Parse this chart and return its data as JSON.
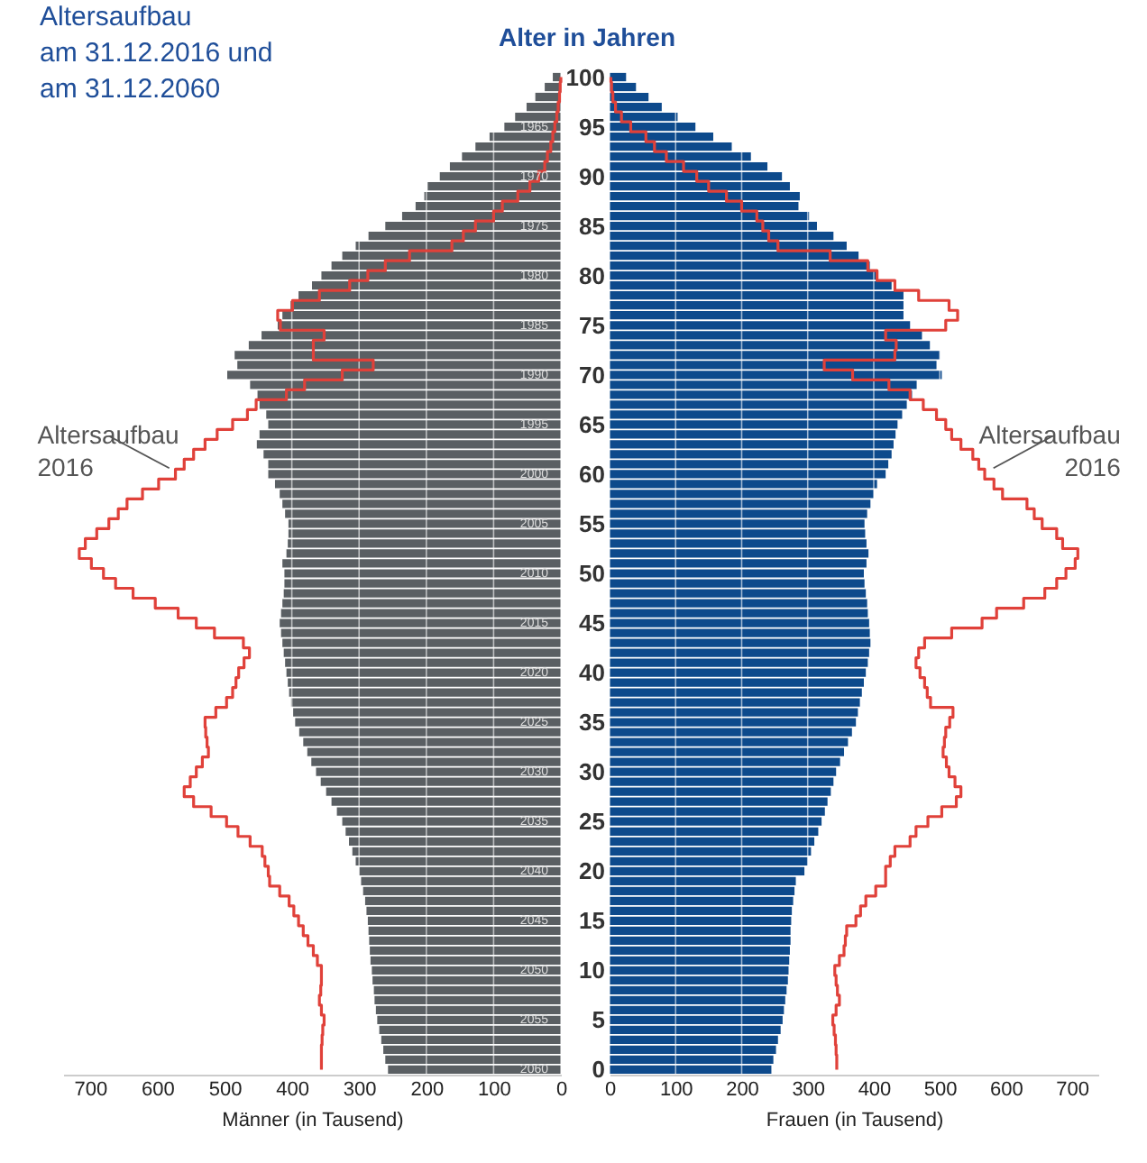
{
  "chart_data": [
    {
      "type": "bar",
      "orientation": "horizontal",
      "title": "Altersaufbau\nam 31.12.2016 und\nam 31.12.2060",
      "xlabel": "Männer (in Tausend)",
      "xlim": [
        740,
        0
      ],
      "xticks": [
        0,
        100,
        200,
        300,
        400,
        500,
        600,
        700
      ],
      "grid": "x",
      "tick_labels": "x",
      "categories": [
        "100",
        null,
        null,
        null,
        null,
        "95",
        null,
        null,
        null,
        null,
        "90",
        null,
        null,
        null,
        null,
        "85",
        null,
        null,
        null,
        null,
        "80",
        null,
        null,
        null,
        null,
        "75",
        null,
        null,
        null,
        null,
        "70",
        null,
        null,
        null,
        null,
        "65",
        null,
        null,
        null,
        null,
        "60",
        null,
        null,
        null,
        null,
        "55",
        null,
        null,
        null,
        null,
        "50",
        null,
        null,
        null,
        null,
        "45",
        null,
        null,
        null,
        null,
        "40",
        null,
        null,
        null,
        null,
        "35",
        null,
        null,
        null,
        null,
        "30",
        null,
        null,
        null,
        null,
        "25",
        null,
        null,
        null,
        null,
        "20",
        null,
        null,
        null,
        null,
        "15",
        null,
        null,
        null,
        null,
        "10",
        null,
        null,
        null,
        null,
        "5",
        null,
        null,
        null,
        null,
        "0"
      ],
      "series": [
        {
          "type": "bar",
          "color": "#5a5f63",
          "values": [
            12,
            24,
            38,
            51,
            68,
            84,
            106,
            127,
            147,
            165,
            180,
            198,
            203,
            216,
            236,
            261,
            286,
            305,
            325,
            341,
            356,
            370,
            390,
            402,
            414,
            421,
            445,
            464,
            485,
            481,
            496,
            462,
            451,
            448,
            438,
            435,
            448,
            452,
            442,
            435,
            435,
            425,
            418,
            414,
            410,
            405,
            405,
            406,
            408,
            414,
            411,
            411,
            412,
            414,
            416,
            418,
            416,
            414,
            412,
            410,
            408,
            406,
            404,
            401,
            398,
            395,
            389,
            383,
            377,
            371,
            364,
            357,
            349,
            341,
            333,
            325,
            320,
            315,
            310,
            305,
            300,
            297,
            294,
            291,
            289,
            287,
            286,
            285,
            284,
            283,
            281,
            280,
            278,
            277,
            275,
            273,
            270,
            267,
            264,
            261,
            257
          ]
        },
        {
          "type": "step",
          "name": "Altersaufbau 2016",
          "color": "#e0413a",
          "values": [
            0,
            1,
            2,
            4,
            6,
            9,
            12,
            15,
            20,
            24,
            33,
            46,
            64,
            87,
            100,
            127,
            145,
            162,
            225,
            261,
            287,
            314,
            359,
            399,
            421,
            417,
            352,
            368,
            368,
            279,
            325,
            381,
            408,
            453,
            466,
            488,
            511,
            529,
            546,
            560,
            573,
            598,
            622,
            645,
            658,
            672,
            690,
            707,
            716,
            698,
            680,
            662,
            636,
            603,
            569,
            542,
            515,
            472,
            463,
            471,
            479,
            483,
            488,
            497,
            513,
            529,
            528,
            526,
            524,
            533,
            542,
            551,
            560,
            546,
            520,
            497,
            480,
            462,
            444,
            440,
            435,
            433,
            418,
            404,
            397,
            390,
            383,
            376,
            368,
            362,
            356,
            356,
            357,
            359,
            356,
            352,
            354,
            355,
            356,
            356,
            356
          ]
        }
      ],
      "annotations": [
        {
          "text": "1965",
          "y": "95"
        },
        {
          "text": "1970",
          "y": "90"
        },
        {
          "text": "1975",
          "y": "85"
        },
        {
          "text": "1980",
          "y": "80"
        },
        {
          "text": "1985",
          "y": "75"
        },
        {
          "text": "1990",
          "y": "70"
        },
        {
          "text": "1995",
          "y": "65"
        },
        {
          "text": "2000",
          "y": "60"
        },
        {
          "text": "2005",
          "y": "55"
        },
        {
          "text": "2010",
          "y": "50"
        },
        {
          "text": "2015",
          "y": "45"
        },
        {
          "text": "2020",
          "y": "40"
        },
        {
          "text": "2025",
          "y": "35"
        },
        {
          "text": "2030",
          "y": "30"
        },
        {
          "text": "2035",
          "y": "25"
        },
        {
          "text": "2040",
          "y": "20"
        },
        {
          "text": "2045",
          "y": "15"
        },
        {
          "text": "2050",
          "y": "10"
        },
        {
          "text": "2055",
          "y": "5"
        },
        {
          "text": "2060",
          "y": "0"
        }
      ]
    },
    {
      "type": "bar",
      "orientation": "horizontal",
      "ylabel": "Alter in Jahren",
      "xlabel": "Frauen (in Tausend)",
      "xlim": [
        0,
        740
      ],
      "xticks": [
        0,
        100,
        200,
        300,
        400,
        500,
        600,
        700
      ],
      "grid": "x",
      "categories": [
        "100",
        null,
        null,
        null,
        null,
        "95",
        null,
        null,
        null,
        null,
        "90",
        null,
        null,
        null,
        null,
        "85",
        null,
        null,
        null,
        null,
        "80",
        null,
        null,
        null,
        null,
        "75",
        null,
        null,
        null,
        null,
        "70",
        null,
        null,
        null,
        null,
        "65",
        null,
        null,
        null,
        null,
        "60",
        null,
        null,
        null,
        null,
        "55",
        null,
        null,
        null,
        null,
        "50",
        null,
        null,
        null,
        null,
        "45",
        null,
        null,
        null,
        null,
        "40",
        null,
        null,
        null,
        null,
        "35",
        null,
        null,
        null,
        null,
        "30",
        null,
        null,
        null,
        null,
        "25",
        null,
        null,
        null,
        null,
        "20",
        null,
        null,
        null,
        null,
        "15",
        null,
        null,
        null,
        null,
        "10",
        null,
        null,
        null,
        null,
        "5",
        null,
        null,
        null,
        null,
        "0"
      ],
      "series": [
        {
          "type": "bar",
          "color": "#0d4a8c",
          "values": [
            25,
            40,
            59,
            79,
            103,
            130,
            157,
            185,
            214,
            239,
            261,
            273,
            288,
            286,
            302,
            314,
            339,
            359,
            377,
            394,
            405,
            427,
            445,
            445,
            445,
            455,
            473,
            485,
            500,
            495,
            503,
            465,
            458,
            450,
            443,
            436,
            433,
            430,
            427,
            422,
            418,
            405,
            400,
            395,
            390,
            386,
            387,
            389,
            392,
            389,
            385,
            386,
            388,
            390,
            391,
            393,
            394,
            395,
            393,
            391,
            388,
            385,
            382,
            379,
            376,
            373,
            367,
            361,
            355,
            349,
            343,
            339,
            335,
            330,
            326,
            321,
            316,
            310,
            305,
            300,
            295,
            282,
            280,
            278,
            276,
            275,
            274,
            274,
            273,
            272,
            271,
            270,
            268,
            266,
            264,
            262,
            259,
            255,
            252,
            248,
            245
          ]
        },
        {
          "type": "step",
          "name": "Altersaufbau 2016",
          "color": "#e0413a",
          "values": [
            2,
            3,
            5,
            9,
            18,
            32,
            55,
            68,
            86,
            112,
            132,
            150,
            177,
            200,
            223,
            232,
            241,
            255,
            334,
            391,
            405,
            432,
            468,
            514,
            527,
            509,
            418,
            434,
            432,
            325,
            368,
            423,
            455,
            475,
            495,
            509,
            518,
            532,
            550,
            559,
            568,
            582,
            595,
            632,
            643,
            655,
            677,
            686,
            709,
            705,
            691,
            677,
            659,
            627,
            586,
            564,
            518,
            477,
            468,
            464,
            470,
            477,
            481,
            486,
            520,
            515,
            509,
            507,
            505,
            510,
            514,
            523,
            532,
            525,
            503,
            482,
            464,
            455,
            432,
            425,
            418,
            418,
            403,
            388,
            380,
            373,
            359,
            357,
            355,
            348,
            341,
            343,
            345,
            348,
            343,
            338,
            340,
            342,
            343,
            344,
            344
          ]
        }
      ]
    }
  ]
}
